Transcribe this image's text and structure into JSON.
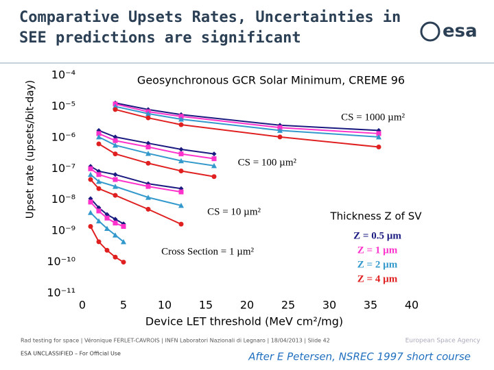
{
  "slide": {
    "title_line1": "Comparative Upsets Rates, Uncertainties in",
    "title_line2": "SEE predictions are significant",
    "logo": "esa",
    "footer": "Rad testing for space | Véronique FERLET-CAVROIS | INFN Laboratori Nazionali di Legnaro | 18/04/2013 | Slide 42",
    "classification": "ESA UNCLASSIFIED – For Official Use",
    "agency": "European Space Agency",
    "credit": "After E Petersen, NSREC 1997 short course"
  },
  "chart_data": {
    "type": "line",
    "yscale": "log",
    "subtitle": "Geosynchronous GCR Solar Minimum, CREME 96",
    "x_label": "Device LET threshold (MeV cm²/mg)",
    "y_label": "Upset rate (upsets/bit-day)",
    "legend_title": "Thickness Z of SV",
    "annotations": [
      "CS = 1000 µm²",
      "CS = 100 µm²",
      "CS = 10 µm²",
      "Cross Section = 1 µm²"
    ],
    "xlim": [
      0,
      40
    ],
    "xticks": [
      0,
      5,
      10,
      15,
      20,
      25,
      30,
      35,
      40
    ],
    "ylim": [
      1e-11,
      0.0001
    ],
    "yticks": [
      {
        "value": 0.0001,
        "label": "10⁻⁴"
      },
      {
        "value": 1e-05,
        "label": "10⁻⁵"
      },
      {
        "value": 1e-06,
        "label": "10⁻⁶"
      },
      {
        "value": 1e-07,
        "label": "10⁻⁷"
      },
      {
        "value": 1e-08,
        "label": "10⁻⁸"
      },
      {
        "value": 1e-09,
        "label": "10⁻⁹"
      },
      {
        "value": 1e-10,
        "label": "10⁻¹⁰"
      },
      {
        "value": 1e-11,
        "label": "10⁻¹¹"
      }
    ],
    "x": [
      4,
      8,
      12,
      24,
      36,
      null,
      2,
      4,
      8,
      12,
      16,
      null,
      1,
      2,
      4,
      8,
      12,
      null,
      1,
      2,
      3,
      4,
      5
    ],
    "series": [
      {
        "name": "Z = 0.5 µm",
        "color": "#1a1a80",
        "marker": "diamond",
        "values": [
          1.3e-05,
          8e-06,
          5.5e-06,
          2.5e-06,
          1.7e-06,
          null,
          1.7e-06,
          1.05e-06,
          6.6e-07,
          4.2e-07,
          3e-07,
          null,
          1.2e-07,
          8.3e-08,
          6.5e-08,
          3.3e-08,
          2.3e-08,
          null,
          1.1e-08,
          5.6e-09,
          3.4e-09,
          2.4e-09,
          1.7e-09
        ]
      },
      {
        "name": "Z = 1 µm",
        "color": "#ff33cc",
        "marker": "square",
        "values": [
          1.2e-05,
          6.8e-06,
          4.8e-06,
          2.1e-06,
          1.35e-06,
          null,
          1.35e-06,
          8e-07,
          5e-07,
          3e-07,
          2.1e-07,
          null,
          1e-07,
          6.5e-08,
          4.5e-08,
          2.7e-08,
          1.8e-08,
          null,
          8.5e-09,
          4.4e-09,
          2.6e-09,
          1.8e-09,
          1.4e-09
        ]
      },
      {
        "name": "Z = 2 µm",
        "color": "#3399cc",
        "marker": "triangle",
        "values": [
          1e-05,
          5.9e-06,
          3.9e-06,
          1.7e-06,
          1.05e-06,
          null,
          1.05e-06,
          5.7e-07,
          3.1e-07,
          1.8e-07,
          1.25e-07,
          null,
          6.5e-08,
          3.9e-08,
          2.7e-08,
          1.2e-08,
          6.6e-09,
          null,
          3.9e-09,
          2.1e-09,
          1.2e-09,
          7.4e-10,
          4.5e-10
        ]
      },
      {
        "name": "Z = 4 µm",
        "color": "#e02020",
        "marker": "circle",
        "values": [
          8e-06,
          4.3e-06,
          2.6e-06,
          1.05e-06,
          5e-07,
          null,
          6.3e-07,
          3e-07,
          1.5e-07,
          8.5e-08,
          5.6e-08,
          null,
          4.5e-08,
          2.3e-08,
          1.4e-08,
          5e-09,
          1.66e-09,
          null,
          1.4e-09,
          4.5e-10,
          2.4e-10,
          1.45e-10,
          1e-10
        ]
      }
    ]
  }
}
